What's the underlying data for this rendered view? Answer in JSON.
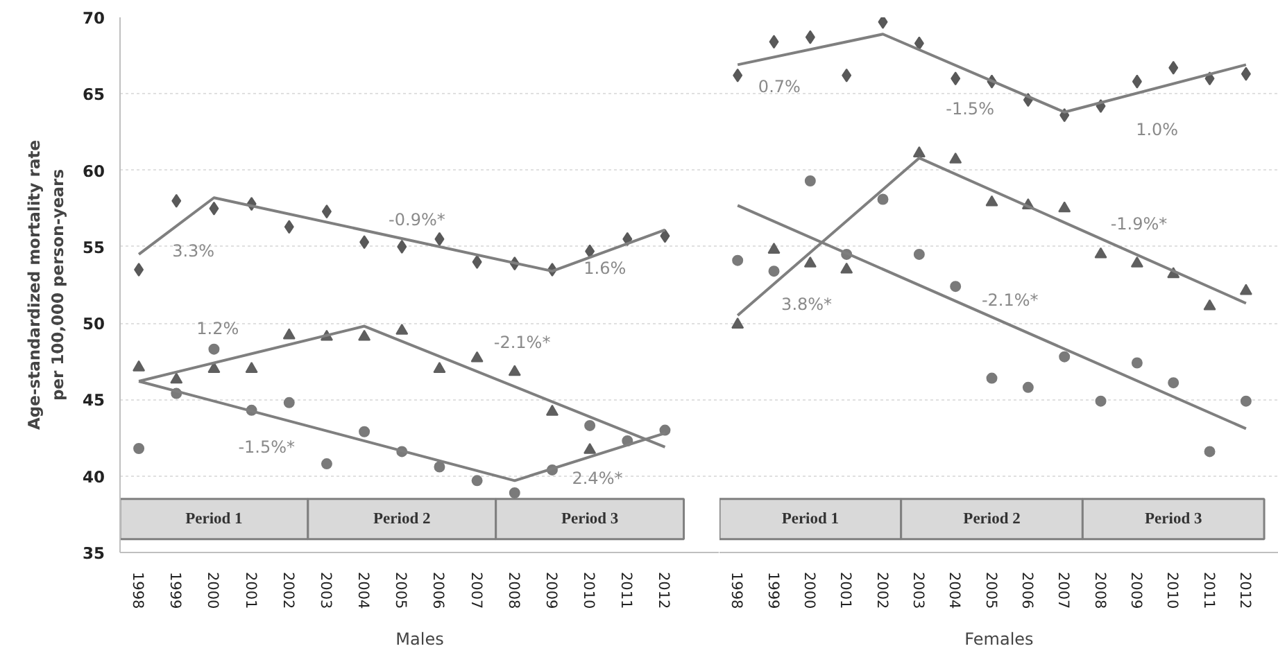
{
  "chart_data": [
    {
      "type": "scatter",
      "xlabel": "Males",
      "ylabel": "Age-standardized mortality rate\nper 100,000 person-years",
      "x": [
        1998,
        1999,
        2000,
        2001,
        2002,
        2003,
        2004,
        2005,
        2006,
        2007,
        2008,
        2009,
        2010,
        2011,
        2012
      ],
      "xlim": [
        1997.5,
        2013.45
      ],
      "xticks": [
        1998,
        1999,
        2000,
        2001,
        2002,
        2003,
        2004,
        2005,
        2006,
        2007,
        2008,
        2009,
        2010,
        2011,
        2012
      ],
      "ylim": [
        35,
        70
      ],
      "yticks": [
        35,
        40,
        45,
        50,
        55,
        60,
        65,
        70
      ],
      "grid": "y",
      "series": [
        {
          "marker": "diamond",
          "color": "#595959",
          "values": [
            53.5,
            58.0,
            57.5,
            57.8,
            56.3,
            57.3,
            55.3,
            55.0,
            55.5,
            54.0,
            53.9,
            53.5,
            54.7,
            55.5,
            55.7
          ]
        },
        {
          "marker": "triangle",
          "color": "#5f5f5f",
          "values": [
            47.1,
            46.3,
            47.0,
            47.0,
            49.2,
            49.1,
            49.1,
            49.5,
            47.0,
            47.7,
            46.8,
            44.2,
            41.7,
            null,
            null
          ]
        },
        {
          "marker": "circle",
          "color": "#7a7a7a",
          "values": [
            41.8,
            45.4,
            48.3,
            44.3,
            44.8,
            40.8,
            42.9,
            41.6,
            40.6,
            39.7,
            38.9,
            40.4,
            43.3,
            42.3,
            43.0
          ]
        },
        {
          "type": "line",
          "marker": "none",
          "color": "#7f7f7f",
          "x": [
            1998,
            2000,
            2009,
            2012
          ],
          "values": [
            54.5,
            58.2,
            53.4,
            56.1
          ]
        },
        {
          "type": "line",
          "marker": "none",
          "color": "#7f7f7f",
          "x": [
            1998,
            2004,
            2012
          ],
          "values": [
            46.2,
            49.8,
            41.9
          ]
        },
        {
          "type": "line",
          "marker": "none",
          "color": "#7f7f7f",
          "x": [
            1998,
            2008,
            2012
          ],
          "values": [
            46.2,
            39.7,
            42.8
          ]
        }
      ],
      "annotations": [
        {
          "text": "3.3%",
          "x": 1999.45,
          "y": 57.18
        },
        {
          "text": "-0.9%*",
          "x": 2005.4,
          "y": 55.32
        },
        {
          "text": "1.6%",
          "x": 2010.4,
          "y": 54.66
        },
        {
          "text": "1.2%",
          "x": 2000.1,
          "y": 47.46
        },
        {
          "text": "-2.1%*",
          "x": 2008.2,
          "y": 45.65
        },
        {
          "text": "-1.5%*",
          "x": 2001.4,
          "y": 43.99
        },
        {
          "text": "2.4%*",
          "x": 2010.2,
          "y": 41.41
        }
      ],
      "bands": [
        {
          "axis": "x",
          "from": 1997.5,
          "to": 2002.5,
          "label": "Period 1",
          "color": "#d9d9d9"
        },
        {
          "axis": "x",
          "from": 2002.5,
          "to": 2007.5,
          "label": "Period 2",
          "color": "#d9d9d9"
        },
        {
          "axis": "x",
          "from": 2007.5,
          "to": 2012.5,
          "label": "Period 3",
          "color": "#d9d9d9"
        }
      ]
    },
    {
      "type": "scatter",
      "xlabel": "Females",
      "x": [
        1998,
        1999,
        2000,
        2001,
        2002,
        2003,
        2004,
        2005,
        2006,
        2007,
        2008,
        2009,
        2010,
        2011,
        2012
      ],
      "xlim": [
        1997.5,
        2012.9
      ],
      "xticks": [
        1998,
        1999,
        2000,
        2001,
        2002,
        2003,
        2004,
        2005,
        2006,
        2007,
        2008,
        2009,
        2010,
        2011,
        2012
      ],
      "ylim": [
        35,
        70
      ],
      "yticks": [
        35,
        40,
        45,
        50,
        55,
        60,
        65,
        70
      ],
      "grid": "y",
      "tick_labels": "x",
      "series": [
        {
          "marker": "diamond",
          "color": "#595959",
          "values": [
            66.2,
            68.4,
            68.7,
            66.2,
            69.7,
            68.3,
            66.0,
            65.8,
            64.6,
            63.6,
            64.2,
            65.8,
            66.7,
            66.0,
            66.3
          ]
        },
        {
          "marker": "triangle",
          "color": "#5f5f5f",
          "values": [
            49.9,
            54.8,
            53.9,
            53.5,
            null,
            61.1,
            60.7,
            57.9,
            57.7,
            57.5,
            54.5,
            53.9,
            53.2,
            51.1,
            52.1
          ]
        },
        {
          "marker": "circle",
          "color": "#7a7a7a",
          "values": [
            54.1,
            53.4,
            59.3,
            54.5,
            58.1,
            54.5,
            52.4,
            46.4,
            45.8,
            47.8,
            44.9,
            47.4,
            46.1,
            41.6,
            44.9
          ]
        },
        {
          "type": "line",
          "marker": "none",
          "color": "#7f7f7f",
          "x": [
            1998,
            2002,
            2007,
            2012
          ],
          "values": [
            66.9,
            68.9,
            63.8,
            66.9
          ]
        },
        {
          "type": "line",
          "marker": "none",
          "color": "#7f7f7f",
          "x": [
            1998,
            2003,
            2012
          ],
          "values": [
            50.5,
            60.8,
            51.3
          ]
        },
        {
          "type": "line",
          "marker": "none",
          "color": "#7f7f7f",
          "x": [
            1998,
            2012
          ],
          "values": [
            57.7,
            43.1
          ]
        }
      ],
      "annotations": [
        {
          "text": "0.7%",
          "x": 1999.15,
          "y": 67.48
        },
        {
          "text": "-1.5%",
          "x": 2004.4,
          "y": 66.45
        },
        {
          "text": "1.0%",
          "x": 2009.55,
          "y": 65.38
        },
        {
          "text": "-1.9%*",
          "x": 2009.05,
          "y": 54.41
        },
        {
          "text": "3.8%*",
          "x": 1999.9,
          "y": 54.41
        },
        {
          "text": "-2.1%*",
          "x": 2005.5,
          "y": 49.88
        }
      ],
      "bands": [
        {
          "axis": "x",
          "from": 1997.5,
          "to": 2002.5,
          "label": "Period 1",
          "color": "#d9d9d9"
        },
        {
          "axis": "x",
          "from": 2002.5,
          "to": 2007.5,
          "label": "Period 2",
          "color": "#d9d9d9"
        },
        {
          "axis": "x",
          "from": 2007.5,
          "to": 2012.5,
          "label": "Period 3",
          "color": "#d9d9d9"
        }
      ]
    }
  ]
}
